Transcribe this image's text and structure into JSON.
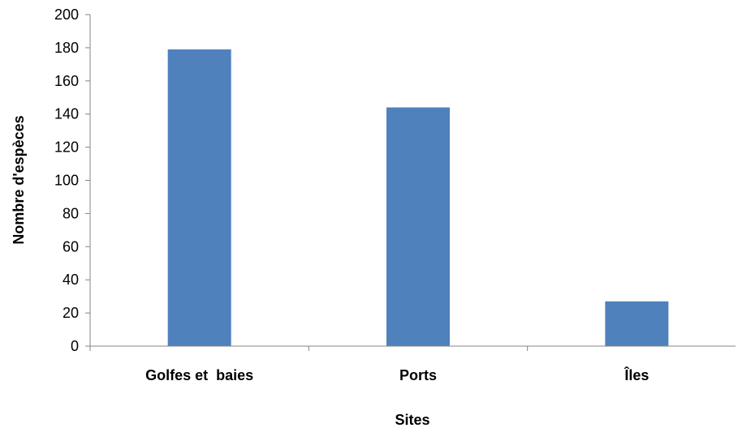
{
  "chart_data": {
    "type": "bar",
    "title": "",
    "xlabel": "Sites",
    "ylabel": "Nombre d'espèces",
    "categories": [
      "Golfes et  baies",
      "Ports",
      "Îles"
    ],
    "values": [
      179,
      144,
      27
    ],
    "ylim": [
      0,
      200
    ],
    "yticks": [
      "0",
      "20",
      "40",
      "60",
      "80",
      "100",
      "120",
      "140",
      "160",
      "180",
      "200"
    ],
    "grid": false,
    "legend": "none",
    "bar_color": "#4f81bd",
    "axis_color": "#868686"
  }
}
